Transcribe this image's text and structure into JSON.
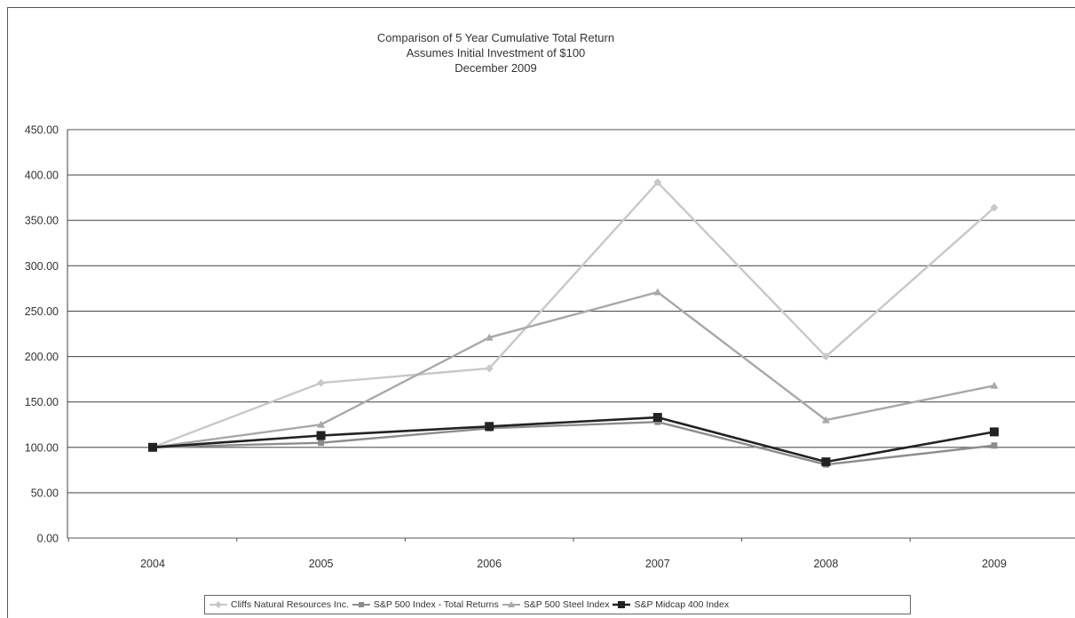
{
  "chart_data": {
    "type": "line",
    "title": "Comparison of 5 Year Cumulative Total Return",
    "subtitle_lines": [
      "Assumes Initial Investment of $100",
      "December 2009"
    ],
    "xlabel": "",
    "ylabel": "",
    "x": [
      "2004",
      "2005",
      "2006",
      "2007",
      "2008",
      "2009"
    ],
    "ylim": [
      0,
      450
    ],
    "yticks": [
      "0.00",
      "50.00",
      "100.00",
      "150.00",
      "200.00",
      "250.00",
      "300.00",
      "350.00",
      "400.00",
      "450.00"
    ],
    "grid": true,
    "legend_position": "bottom",
    "series": [
      {
        "name": "Cliffs Natural Resources Inc.",
        "values": [
          100,
          171,
          187,
          392,
          200,
          364
        ],
        "color": "#c8c8c8",
        "marker": "diamond"
      },
      {
        "name": "S&P 500 Index - Total Returns",
        "values": [
          100,
          105,
          121,
          128,
          81,
          102
        ],
        "color": "#8c8c8c",
        "marker": "square"
      },
      {
        "name": "S&P 500 Steel Index",
        "values": [
          100,
          125,
          221,
          271,
          130,
          168
        ],
        "color": "#a8a8a8",
        "marker": "triangle"
      },
      {
        "name": "S&P Midcap 400 Index",
        "values": [
          100,
          113,
          123,
          133,
          84,
          117
        ],
        "color": "#222222",
        "marker": "square"
      }
    ]
  }
}
